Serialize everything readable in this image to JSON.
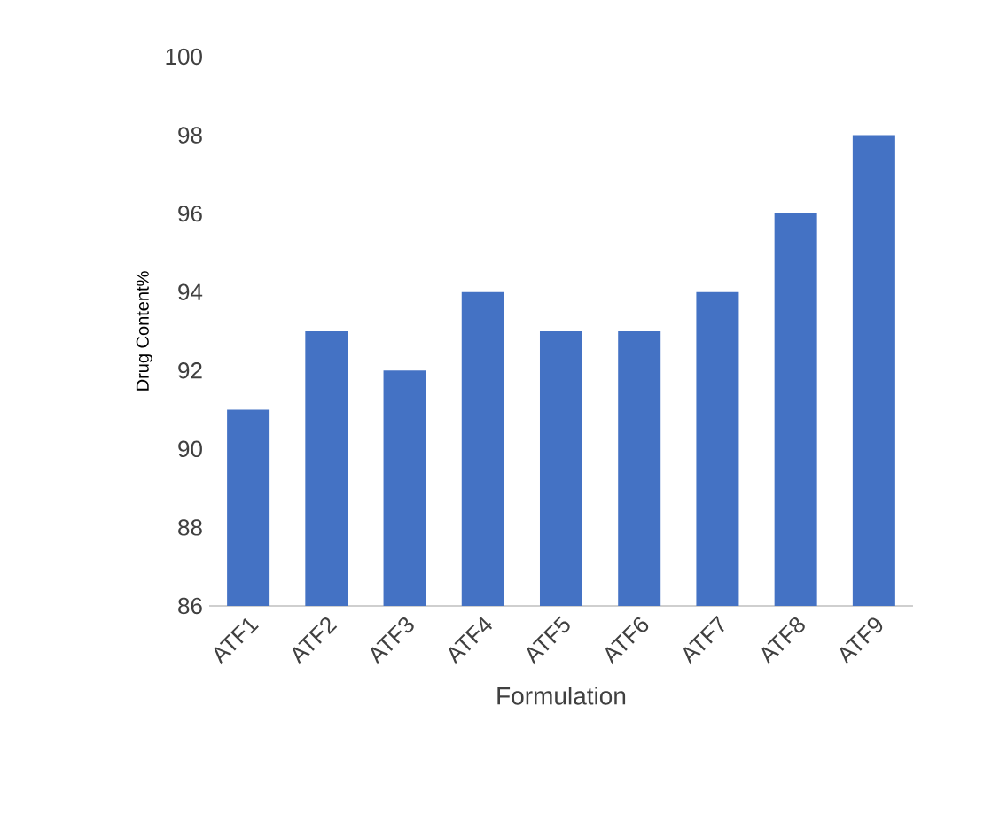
{
  "chart_data": {
    "type": "bar",
    "xlabel": "Formulation",
    "ylabel": "Drug Content%",
    "categories": [
      "ATF1",
      "ATF2",
      "ATF3",
      "ATF4",
      "ATF5",
      "ATF6",
      "ATF7",
      "ATF8",
      "ATF9"
    ],
    "values": [
      91,
      93,
      92,
      94,
      93,
      93,
      94,
      96,
      98
    ],
    "color": "#4472c4",
    "ylim": [
      86,
      100
    ],
    "yticks": [
      86,
      88,
      90,
      92,
      94,
      96,
      98,
      100
    ]
  }
}
